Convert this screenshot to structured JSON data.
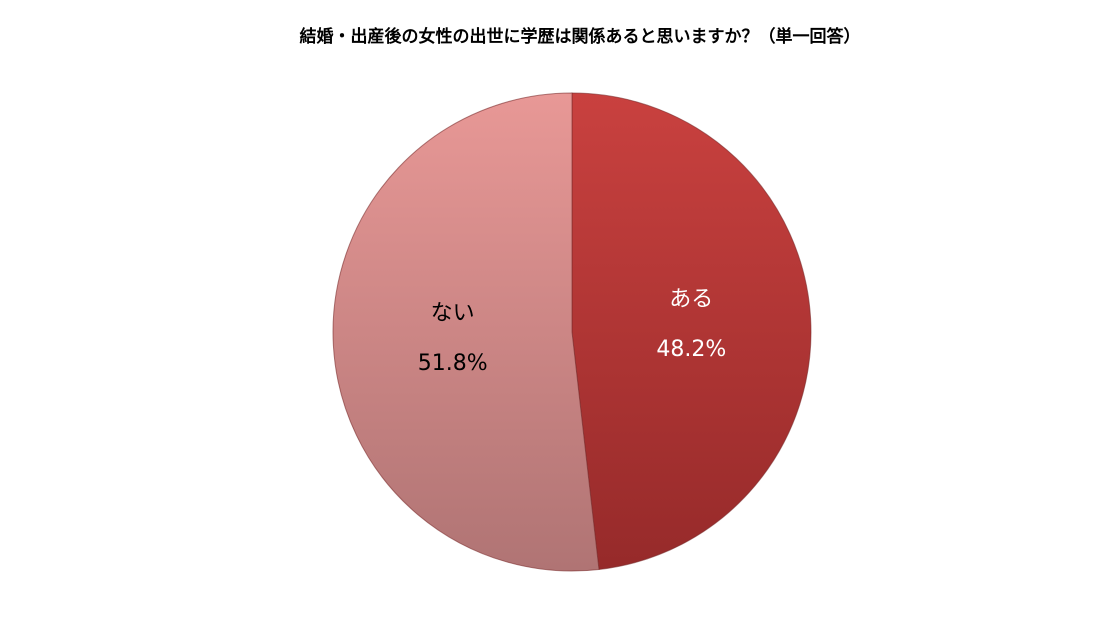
{
  "chart_data": {
    "type": "pie",
    "title": "結婚・出産後の女性の出世に学歴は関係あると思いますか？（単一回答）",
    "categories": [
      "ある",
      "ない"
    ],
    "values": [
      48.2,
      51.8
    ],
    "value_labels": [
      "48.2%",
      "51.8%"
    ],
    "colors": [
      "#c0393b",
      "#d88a8a"
    ],
    "label_colors": [
      "#ffffff",
      "#000000"
    ]
  }
}
